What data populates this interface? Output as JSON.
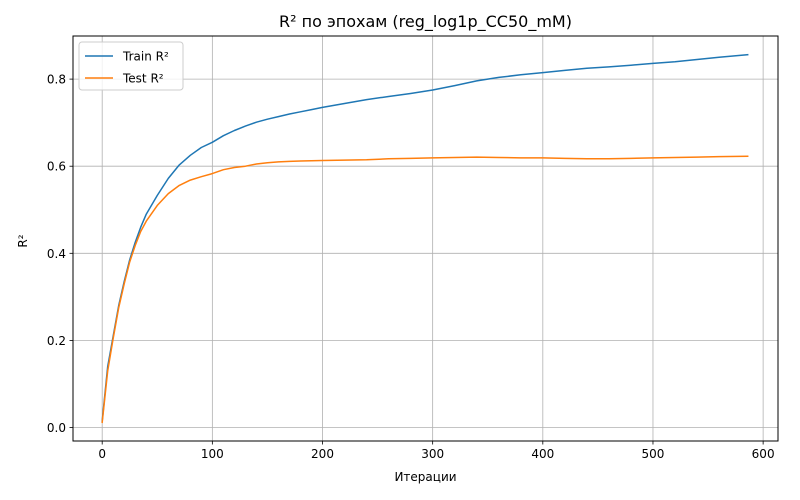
{
  "chart_data": {
    "type": "line",
    "title": "R² по эпохам (reg_log1p_CC50_mM)",
    "xlabel": "Итерации",
    "ylabel": "R²",
    "xlim": [
      -26.5,
      613.5
    ],
    "ylim": [
      -0.031,
      0.899
    ],
    "x_ticks": [
      0,
      100,
      200,
      300,
      400,
      500,
      600
    ],
    "y_ticks": [
      0.0,
      0.2,
      0.4,
      0.6,
      0.8
    ],
    "x_tick_labels": [
      "0",
      "100",
      "200",
      "300",
      "400",
      "500",
      "600"
    ],
    "y_tick_labels": [
      "0.0",
      "0.2",
      "0.4",
      "0.6",
      "0.8"
    ],
    "grid": true,
    "legend_position": "top-left",
    "series": [
      {
        "name": "Train R²",
        "color": "#1f77b4",
        "x": [
          0,
          5,
          10,
          15,
          20,
          25,
          30,
          35,
          40,
          50,
          60,
          70,
          80,
          90,
          100,
          110,
          120,
          130,
          140,
          150,
          160,
          170,
          180,
          190,
          200,
          220,
          240,
          260,
          280,
          300,
          320,
          340,
          360,
          380,
          400,
          420,
          440,
          460,
          480,
          500,
          520,
          540,
          560,
          586
        ],
        "y": [
          0.015,
          0.14,
          0.21,
          0.28,
          0.335,
          0.385,
          0.425,
          0.46,
          0.49,
          0.533,
          0.572,
          0.603,
          0.625,
          0.643,
          0.655,
          0.67,
          0.682,
          0.692,
          0.701,
          0.708,
          0.714,
          0.72,
          0.725,
          0.73,
          0.735,
          0.744,
          0.753,
          0.76,
          0.767,
          0.775,
          0.785,
          0.796,
          0.804,
          0.81,
          0.815,
          0.82,
          0.825,
          0.828,
          0.832,
          0.836,
          0.84,
          0.845,
          0.85,
          0.856
        ]
      },
      {
        "name": "Test R²",
        "color": "#ff7f0e",
        "x": [
          0,
          5,
          10,
          15,
          20,
          25,
          30,
          35,
          40,
          50,
          60,
          70,
          80,
          90,
          100,
          110,
          120,
          130,
          140,
          150,
          160,
          170,
          180,
          200,
          220,
          240,
          260,
          280,
          300,
          320,
          340,
          360,
          380,
          400,
          420,
          440,
          460,
          480,
          500,
          520,
          540,
          560,
          586
        ],
        "y": [
          0.012,
          0.13,
          0.205,
          0.275,
          0.33,
          0.38,
          0.418,
          0.45,
          0.474,
          0.51,
          0.537,
          0.556,
          0.568,
          0.576,
          0.583,
          0.592,
          0.597,
          0.6,
          0.605,
          0.608,
          0.61,
          0.611,
          0.612,
          0.613,
          0.614,
          0.615,
          0.617,
          0.618,
          0.619,
          0.62,
          0.621,
          0.62,
          0.619,
          0.619,
          0.618,
          0.617,
          0.617,
          0.618,
          0.619,
          0.62,
          0.621,
          0.622,
          0.623
        ]
      }
    ]
  }
}
